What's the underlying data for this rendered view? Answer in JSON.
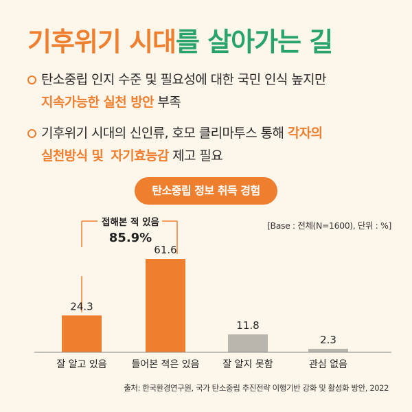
{
  "title": {
    "part1": "기후위기 시대",
    "part2": "를 살아가는 길"
  },
  "bullets": [
    {
      "line1": "탄소중립 인지 수준 및 필요성에 대한 국민 인식 높지만",
      "line2_highlight": "지속가능한 실천 방안",
      "line2_rest": " 부족"
    },
    {
      "line1_plain": "기후위기 시대의 신인류, 호모 클리마투스 통해 ",
      "line1_highlight": "각자의",
      "line2_highlight1": "실천방식 및",
      "line2_space": "  ",
      "line2_highlight2": "자기효능감",
      "line2_rest": " 제고 필요"
    }
  ],
  "pill": "탄소중립 정보 취득 경험",
  "base_note": "[Base : 전체(N=1600), 단위 : %]",
  "bracket": {
    "label": "접해본 적 있음",
    "value": "85.9%"
  },
  "source": "출처: 한국환경연구원, 국가 탄소중립 추진전략 이행기반 강화 및 활성화 방안, 2022",
  "colors": {
    "orange": "#ee7f2f",
    "green": "#27a36b",
    "gray": "#b8b6ad",
    "background": "#fdf6ea"
  },
  "chart_data": {
    "type": "bar",
    "title": "탄소중립 정보 취득 경험",
    "categories": [
      "잘 알고 있음",
      "들어본 적은 있음",
      "잘 알지 못함",
      "관심 없음"
    ],
    "values": [
      24.3,
      61.6,
      11.8,
      2.3
    ],
    "value_labels": [
      "24.3",
      "61.6",
      "11.8",
      "2.3"
    ],
    "bar_colors": [
      "#ee7f2f",
      "#ee7f2f",
      "#b8b6ad",
      "#b8b6ad"
    ],
    "ylim": [
      0,
      61.6
    ],
    "xlabel": "",
    "ylabel": "%",
    "grid": false
  }
}
